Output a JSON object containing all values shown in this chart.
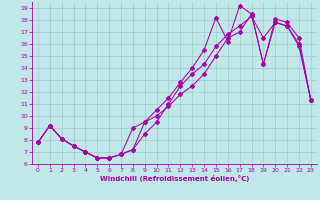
{
  "xlabel": "Windchill (Refroidissement éolien,°C)",
  "xlim": [
    -0.5,
    23.5
  ],
  "ylim": [
    6,
    19.5
  ],
  "xticks": [
    0,
    1,
    2,
    3,
    4,
    5,
    6,
    7,
    8,
    9,
    10,
    11,
    12,
    13,
    14,
    15,
    16,
    17,
    18,
    19,
    20,
    21,
    22,
    23
  ],
  "yticks": [
    6,
    7,
    8,
    9,
    10,
    11,
    12,
    13,
    14,
    15,
    16,
    17,
    18,
    19
  ],
  "bg_color": "#c0e8e8",
  "line_color": "#aa00aa",
  "grid_color": "#a0cccc",
  "line1_x": [
    0,
    1,
    2,
    3,
    4,
    5,
    6,
    7,
    8,
    9,
    10,
    11,
    12,
    13,
    14,
    15,
    16,
    17,
    18,
    19,
    20,
    21,
    22,
    23
  ],
  "line1_y": [
    7.8,
    9.2,
    8.1,
    7.5,
    7.0,
    6.5,
    6.5,
    6.8,
    7.2,
    9.5,
    10.5,
    11.5,
    12.8,
    14.0,
    15.5,
    18.2,
    16.2,
    19.2,
    18.5,
    14.3,
    18.1,
    17.8,
    16.5,
    11.3
  ],
  "line2_x": [
    0,
    1,
    2,
    3,
    4,
    5,
    6,
    7,
    8,
    9,
    10,
    11,
    12,
    13,
    14,
    15,
    16,
    17,
    18,
    19,
    20,
    21,
    22,
    23
  ],
  "line2_y": [
    7.8,
    9.2,
    8.1,
    7.5,
    7.0,
    6.5,
    6.5,
    6.8,
    7.2,
    8.5,
    9.5,
    11.0,
    12.5,
    13.5,
    14.3,
    15.8,
    16.8,
    17.5,
    18.3,
    16.5,
    17.8,
    17.5,
    16.0,
    11.3
  ],
  "line3_x": [
    0,
    1,
    2,
    3,
    4,
    5,
    6,
    7,
    8,
    9,
    10,
    11,
    12,
    13,
    14,
    15,
    16,
    17,
    18,
    19,
    20,
    21,
    22,
    23
  ],
  "line3_y": [
    7.8,
    9.2,
    8.1,
    7.5,
    7.0,
    6.5,
    6.5,
    6.8,
    9.0,
    9.5,
    10.0,
    10.8,
    11.8,
    12.5,
    13.5,
    15.0,
    16.5,
    17.0,
    18.5,
    14.3,
    17.8,
    17.5,
    15.8,
    11.3
  ]
}
